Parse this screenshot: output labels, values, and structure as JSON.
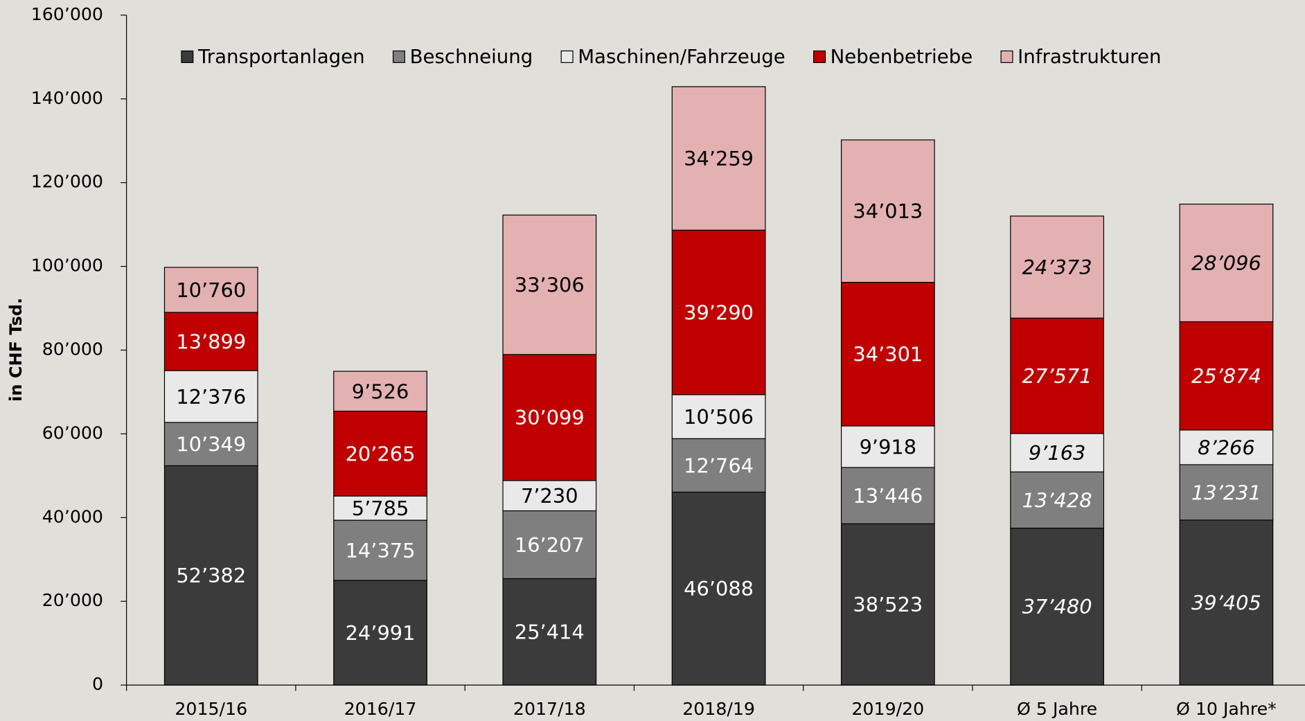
{
  "chart_data": {
    "type": "stacked_bar",
    "y_label": "in CHF Tsd.",
    "categories": [
      "2015/16",
      "2016/17",
      "2017/18",
      "2018/19",
      "2019/20",
      "Ø 5 Jahre",
      "Ø 10 Jahre*"
    ],
    "series": [
      {
        "name": "Transportanlagen",
        "color": "#3b3b3b",
        "label_color": "#ffffff",
        "values": [
          52382,
          24991,
          25414,
          46088,
          38523,
          37480,
          39405
        ],
        "value_labels": [
          "52’382",
          "24’991",
          "25’414",
          "46’088",
          "38’523",
          "37’480",
          "39’405"
        ]
      },
      {
        "name": "Beschneiung",
        "color": "#7f7f7f",
        "label_color": "#ffffff",
        "values": [
          10349,
          14375,
          16207,
          12764,
          13446,
          13428,
          13231
        ],
        "value_labels": [
          "10’349",
          "14’375",
          "16’207",
          "12’764",
          "13’446",
          "13’428",
          "13’231"
        ]
      },
      {
        "name": "Maschinen/Fahrzeuge",
        "color": "#e9e9e9",
        "label_color": "#000000",
        "values": [
          12376,
          5785,
          7230,
          10506,
          9918,
          9163,
          8266
        ],
        "value_labels": [
          "12’376",
          "5’785",
          "7’230",
          "10’506",
          "9’918",
          "9’163",
          "8’266"
        ]
      },
      {
        "name": "Nebenbetriebe",
        "color": "#c00000",
        "label_color": "#ffffff",
        "values": [
          13899,
          20265,
          30099,
          39290,
          34301,
          27571,
          25874
        ],
        "value_labels": [
          "13’899",
          "20’265",
          "30’099",
          "39’290",
          "34’301",
          "27’571",
          "25’874"
        ]
      },
      {
        "name": "Infrastrukturen",
        "color": "#e3b1b1",
        "label_color": "#000000",
        "values": [
          10760,
          9526,
          33306,
          34259,
          34013,
          24373,
          28096
        ],
        "value_labels": [
          "10’760",
          "9’526",
          "33’306",
          "34’259",
          "34’013",
          "24’373",
          "28’096"
        ]
      }
    ],
    "ylim": [
      0,
      160000
    ],
    "yticks": [
      0,
      {
        "value": 20000,
        "label": "20’000"
      },
      {
        "value": 40000,
        "label": "40’000"
      },
      {
        "value": 60000,
        "label": "60’000"
      },
      {
        "value": 80000,
        "label": "80’000"
      },
      {
        "value": 100000,
        "label": "100’000"
      },
      {
        "value": 120000,
        "label": "120’000"
      },
      {
        "value": 140000,
        "label": "140’000"
      },
      {
        "value": 160000,
        "label": "160’000"
      }
    ],
    "legend": "top",
    "grid": false
  }
}
